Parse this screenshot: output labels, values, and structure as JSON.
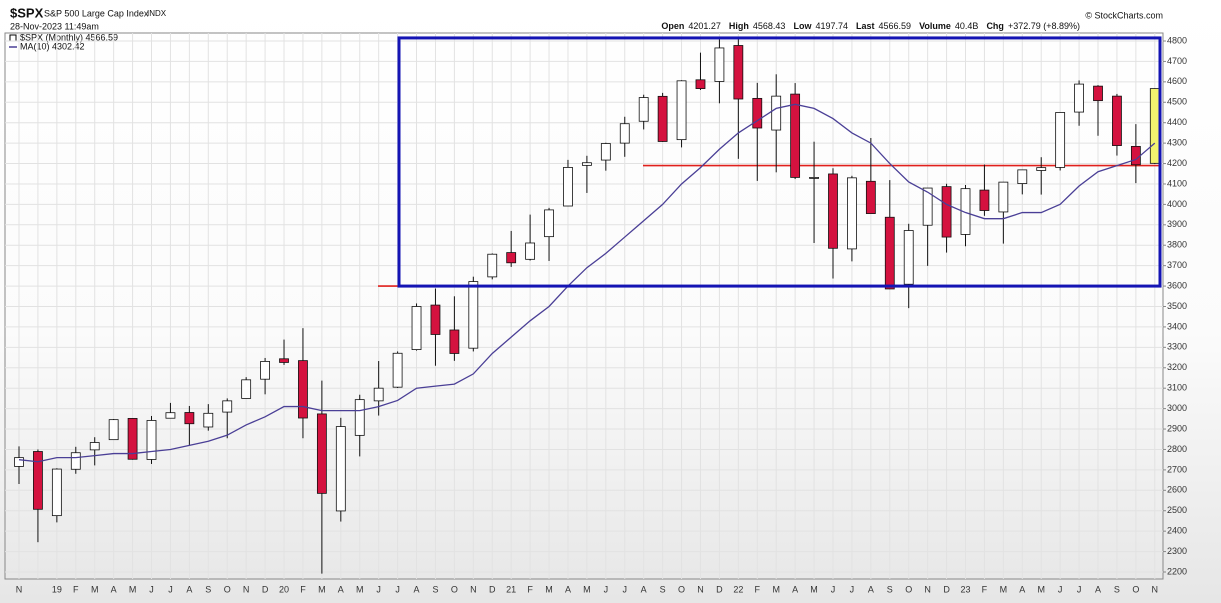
{
  "chart_data": {
    "type": "candlestick",
    "symbol": "$SPX",
    "name": "S&P 500 Large Cap Index",
    "exchange": "INDX",
    "date": "28-Nov-2023 11:49am",
    "copyright": "© StockCharts.com",
    "stats": [
      {
        "label": "Open",
        "value": "4201.27"
      },
      {
        "label": "High",
        "value": "4568.43"
      },
      {
        "label": "Low",
        "value": "4197.74"
      },
      {
        "label": "Last",
        "value": "4566.59"
      },
      {
        "label": "Volume",
        "value": "40.4B"
      },
      {
        "label": "Chg",
        "value": "+372.79 (+8.89%)"
      }
    ],
    "legend": [
      "$SPX (Monthly) 4566.59",
      "MA(10) 4302.42"
    ],
    "categories": [
      "N",
      null,
      "19",
      "F",
      "M",
      "A",
      "M",
      "J",
      "J",
      "A",
      "S",
      "O",
      "N",
      "D",
      "20",
      "F",
      "M",
      "A",
      "M",
      "J",
      "J",
      "A",
      "S",
      "O",
      "N",
      "D",
      "21",
      "F",
      "M",
      "A",
      "M",
      "J",
      "J",
      "A",
      "S",
      "O",
      "N",
      "D",
      "22",
      "F",
      "M",
      "A",
      "M",
      "J",
      "J",
      "A",
      "S",
      "O",
      "N",
      "D",
      "23",
      "F",
      "M",
      "A",
      "M",
      "J",
      "J",
      "A",
      "S",
      "O",
      "N"
    ],
    "open": [
      2717,
      2790,
      2476,
      2703,
      2798,
      2848,
      2952,
      2751,
      2953,
      2981,
      2910,
      2983,
      3050,
      3144,
      3244,
      3235,
      2974,
      2499,
      2869,
      3038,
      3105,
      3289,
      3507,
      3385,
      3296,
      3645,
      3764,
      3731,
      3842,
      3992,
      4191,
      4217,
      4300,
      4407,
      4529,
      4317,
      4610,
      4602,
      4778,
      4519,
      4364,
      4540,
      4130,
      4149,
      3782,
      4113,
      3937,
      3609,
      3898,
      4087,
      3853,
      4070,
      3963,
      4102,
      4166,
      4181,
      4452,
      4579,
      4530,
      4284,
      4201
    ],
    "high": [
      2815,
      2800,
      2708,
      2813,
      2860,
      2949,
      2954,
      2964,
      3028,
      3013,
      3022,
      3050,
      3154,
      3248,
      3338,
      3394,
      3137,
      2955,
      3068,
      3233,
      3280,
      3515,
      3588,
      3550,
      3646,
      3760,
      3870,
      3950,
      3983,
      4218,
      4238,
      4302,
      4429,
      4537,
      4546,
      4608,
      4743,
      4808,
      4819,
      4595,
      4637,
      4594,
      4307,
      4177,
      4140,
      4325,
      4119,
      3905,
      4080,
      4101,
      4095,
      4195,
      4110,
      4170,
      4231,
      4449,
      4607,
      4584,
      4541,
      4393,
      4568
    ],
    "low": [
      2631,
      2346,
      2443,
      2681,
      2722,
      2848,
      2750,
      2729,
      2953,
      2822,
      2892,
      2855,
      3050,
      3070,
      3214,
      2855,
      2192,
      2447,
      2766,
      2966,
      3101,
      3284,
      3210,
      3234,
      3280,
      3633,
      3694,
      3725,
      3723,
      3992,
      4056,
      4165,
      4233,
      4367,
      4306,
      4279,
      4560,
      4495,
      4223,
      4115,
      4157,
      4124,
      3811,
      3637,
      3721,
      3955,
      3585,
      3492,
      3699,
      3764,
      3795,
      3944,
      3808,
      4049,
      4048,
      4166,
      4385,
      4336,
      4239,
      4104,
      4198
    ],
    "close": [
      2760,
      2507,
      2704,
      2784,
      2834,
      2946,
      2752,
      2942,
      2980,
      2926,
      2977,
      3038,
      3141,
      3231,
      3226,
      2954,
      2585,
      2912,
      3044,
      3100,
      3271,
      3500,
      3363,
      3270,
      3622,
      3756,
      3714,
      3811,
      3973,
      4181,
      4204,
      4298,
      4395,
      4523,
      4308,
      4605,
      4567,
      4766,
      4516,
      4374,
      4530,
      4132,
      4132,
      3785,
      4130,
      3955,
      3586,
      3872,
      4080,
      3840,
      4077,
      3970,
      4109,
      4169,
      4180,
      4450,
      4589,
      4508,
      4288,
      4194,
      4567
    ],
    "ma": {
      "name": "MA(10)",
      "color": "#4a3f96",
      "values": [
        2750,
        2740,
        2760,
        2760,
        2770,
        2780,
        2780,
        2790,
        2800,
        2820,
        2840,
        2870,
        2920,
        2960,
        3010,
        3010,
        2990,
        2990,
        2990,
        3010,
        3040,
        3100,
        3110,
        3120,
        3170,
        3270,
        3350,
        3430,
        3500,
        3600,
        3690,
        3760,
        3840,
        3920,
        4000,
        4100,
        4180,
        4270,
        4350,
        4410,
        4470,
        4490,
        4470,
        4420,
        4350,
        4300,
        4200,
        4110,
        4060,
        4000,
        3960,
        3930,
        3930,
        3960,
        3960,
        4000,
        4090,
        4160,
        4190,
        4220,
        4300
      ]
    },
    "colors": {
      "up": "#ffffff",
      "down": "#d4123f",
      "current": "#f3f36e"
    },
    "annotations": {
      "box": {
        "top": 4815,
        "bottom": 3600,
        "color": "#1414b4"
      },
      "levels": [
        {
          "value": 4190,
          "color": "#e0201c"
        },
        {
          "value": 3600,
          "color": "#e0201c"
        }
      ]
    },
    "ylim": [
      2200,
      4800
    ],
    "yticks": [
      2200,
      2300,
      2400,
      2500,
      2600,
      2700,
      2800,
      2900,
      3000,
      3100,
      3200,
      3300,
      3400,
      3500,
      3600,
      3700,
      3800,
      3900,
      4000,
      4100,
      4200,
      4300,
      4400,
      4500,
      4600,
      4700,
      4800
    ],
    "grid": true
  }
}
